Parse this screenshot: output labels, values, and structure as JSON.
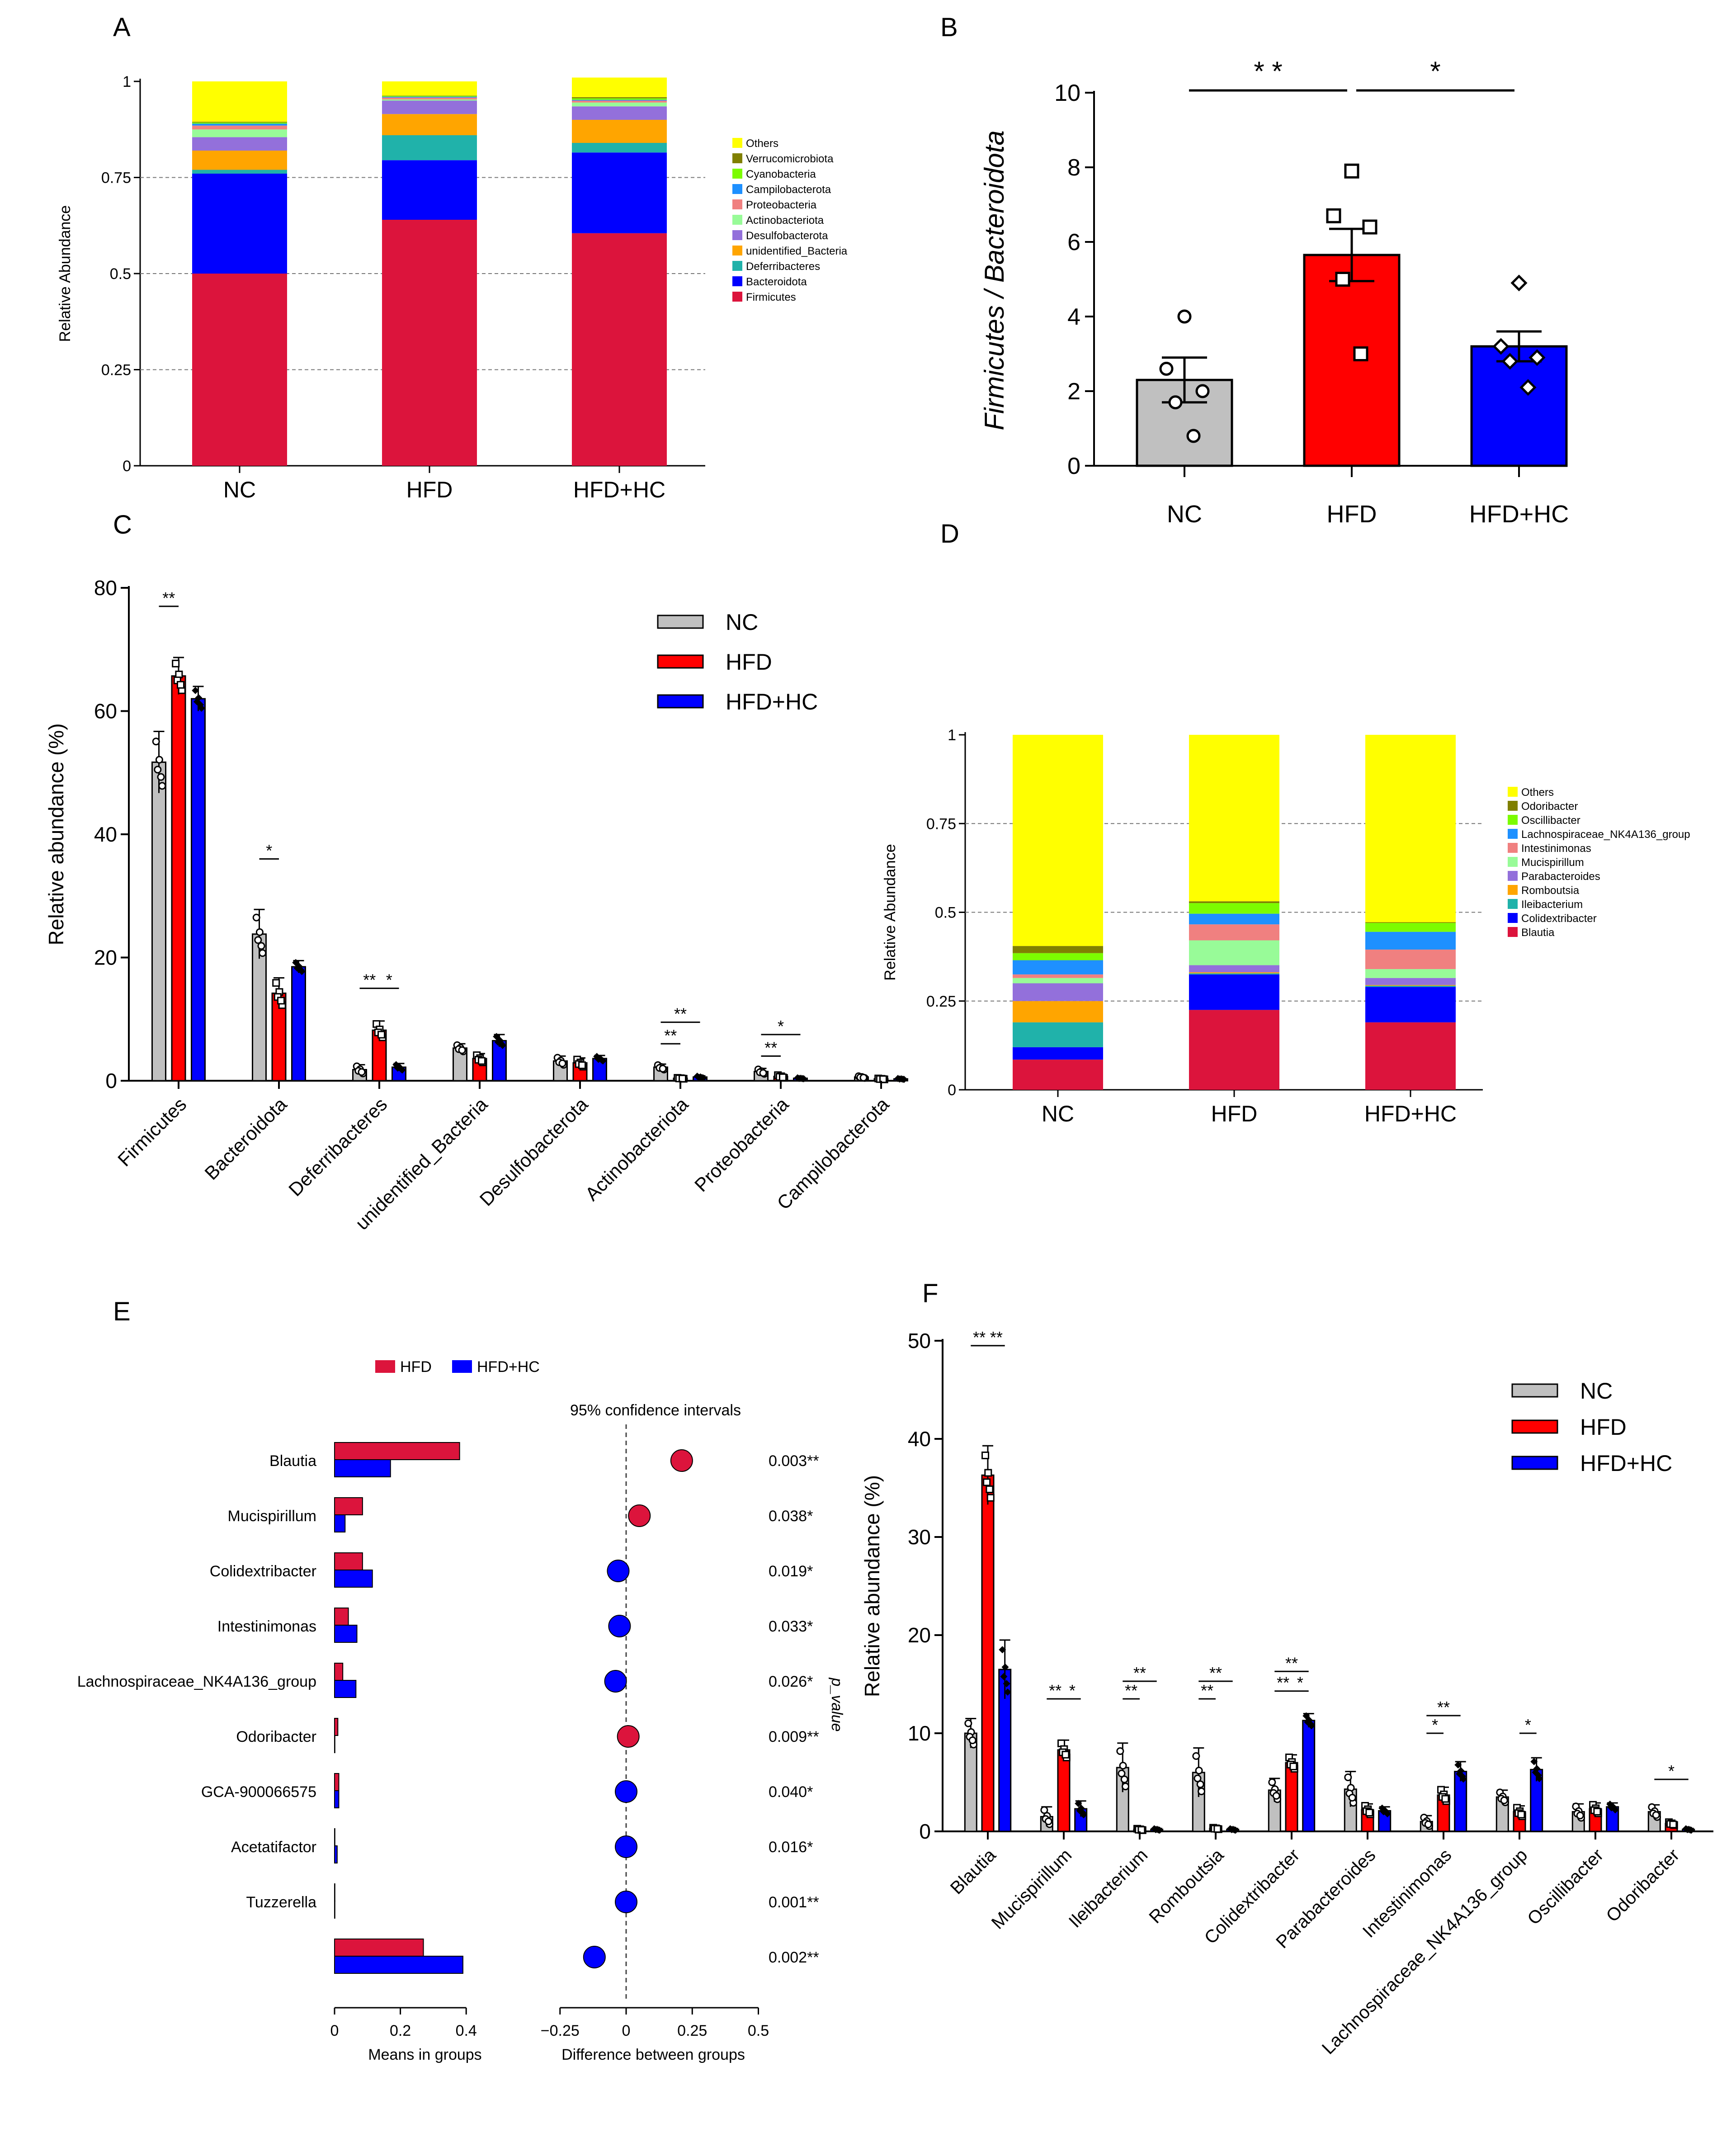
{
  "colors": {
    "NC": "#c0c0c0",
    "HFD": "#ff0000",
    "HFD+HC": "#0000ff",
    "ext_HFD": "#dc143c",
    "ext_HFDHC": "#0000ff"
  },
  "chart_data": [
    {
      "panel": "A",
      "type": "bar",
      "stacked": true,
      "ylabel": "Relative Abundance",
      "yticks": [
        "0",
        "0.25",
        "0.5",
        "0.75",
        "1"
      ],
      "categories": [
        "NC",
        "HFD",
        "HFD+HC"
      ],
      "legend": [
        "Others",
        "Verrucomicrobiota",
        "Cyanobacteria",
        "Campilobacterota",
        "Proteobacteria",
        "Actinobacteriota",
        "Desulfobacterota",
        "unidentified_Bacteria",
        "Deferribacteres",
        "Bacteroidota",
        "Firmicutes"
      ],
      "series": [
        {
          "name": "Firmicutes",
          "color": "#dc143c",
          "values": [
            0.5,
            0.64,
            0.605
          ]
        },
        {
          "name": "Bacteroidota",
          "color": "#0000ff",
          "values": [
            0.26,
            0.155,
            0.21
          ]
        },
        {
          "name": "Deferribacteres",
          "color": "#20b2aa",
          "values": [
            0.01,
            0.065,
            0.025
          ]
        },
        {
          "name": "unidentified_Bacteria",
          "color": "#ffa500",
          "values": [
            0.05,
            0.055,
            0.06
          ]
        },
        {
          "name": "Desulfobacterota",
          "color": "#9370db",
          "values": [
            0.035,
            0.035,
            0.035
          ]
        },
        {
          "name": "Actinobacteriota",
          "color": "#98fb98",
          "values": [
            0.02,
            0.003,
            0.01
          ]
        },
        {
          "name": "Proteobacteria",
          "color": "#f08080",
          "values": [
            0.01,
            0.005,
            0.005
          ]
        },
        {
          "name": "Campilobacterota",
          "color": "#1e90ff",
          "values": [
            0.005,
            0.002,
            0.002
          ]
        },
        {
          "name": "Cyanobacteria",
          "color": "#7cfc00",
          "values": [
            0.003,
            0.002,
            0.004
          ]
        },
        {
          "name": "Verrucomicrobiota",
          "color": "#808000",
          "values": [
            0.002,
            0.001,
            0.003
          ]
        },
        {
          "name": "Others",
          "color": "#ffff00",
          "values": [
            0.105,
            0.037,
            0.051
          ]
        }
      ]
    },
    {
      "panel": "B",
      "type": "bar",
      "ylabel": "Firmicutes / Bacteroidota",
      "ylim": [
        0,
        10
      ],
      "yticks": [
        "0",
        "2",
        "4",
        "6",
        "8",
        "10"
      ],
      "categories": [
        "NC",
        "HFD",
        "HFD+HC"
      ],
      "values": [
        2.3,
        5.65,
        3.2
      ],
      "sem": [
        0.6,
        0.7,
        0.4
      ],
      "points": [
        [
          4.0,
          2.6,
          2.0,
          1.7,
          0.8
        ],
        [
          7.9,
          6.7,
          6.4,
          5.0,
          3.0
        ],
        [
          4.9,
          3.2,
          2.9,
          2.8,
          2.1
        ]
      ],
      "comparisons": [
        {
          "from": "NC",
          "to": "HFD",
          "label": "* *"
        },
        {
          "from": "HFD",
          "to": "HFD+HC",
          "label": "*"
        }
      ]
    },
    {
      "panel": "C",
      "type": "bar",
      "ylabel": "Relative  abundance (%)",
      "ylim": [
        0,
        80
      ],
      "yticks": [
        "0",
        "20",
        "40",
        "60",
        "80"
      ],
      "categories": [
        "Firmicutes",
        "Bacteroidota",
        "Deferribacteres",
        "unidentified_Bacteria",
        "Desulfobacterota",
        "Actinobacteriota",
        "Proteobacteria",
        "Campilobacterota"
      ],
      "series": [
        {
          "name": "NC",
          "values": [
            51.7,
            23.8,
            1.8,
            5.3,
            3.2,
            2.2,
            1.5,
            0.6
          ]
        },
        {
          "name": "HFD",
          "values": [
            65.7,
            14.2,
            8.2,
            3.6,
            2.9,
            0.4,
            0.7,
            0.3
          ]
        },
        {
          "name": "HFD+HC",
          "values": [
            62.0,
            18.5,
            2.2,
            6.5,
            3.6,
            0.6,
            0.4,
            0.3
          ]
        }
      ],
      "sem": [
        [
          5.0,
          4.0,
          0.8,
          0.7,
          0.8,
          0.5,
          0.5,
          0.2
        ],
        [
          3.0,
          2.5,
          1.5,
          0.8,
          0.8,
          0.1,
          0.3,
          0.1
        ],
        [
          2.0,
          1.0,
          0.6,
          1.0,
          0.5,
          0.2,
          0.1,
          0.1
        ]
      ],
      "comparisons": [
        {
          "cat": 0,
          "from": 0,
          "to": 1,
          "label": "**",
          "y": 77
        },
        {
          "cat": 1,
          "from": 0,
          "to": 1,
          "label": "*",
          "y": 36
        },
        {
          "cat": 2,
          "from": 0,
          "to": 1,
          "label": "**",
          "y": 15
        },
        {
          "cat": 2,
          "from": 1,
          "to": 2,
          "label": "*",
          "y": 15
        },
        {
          "cat": 5,
          "from": 0,
          "to": 1,
          "label": "**",
          "y": 6
        },
        {
          "cat": 5,
          "from": 0,
          "to": 2,
          "label": "**",
          "y": 9.5
        },
        {
          "cat": 6,
          "from": 0,
          "to": 1,
          "label": "**",
          "y": 4
        },
        {
          "cat": 6,
          "from": 0,
          "to": 2,
          "label": "*",
          "y": 7.5
        }
      ]
    },
    {
      "panel": "D",
      "type": "bar",
      "stacked": true,
      "ylabel": "Relative Abundance",
      "yticks": [
        "0",
        "0.25",
        "0.5",
        "0.75",
        "1"
      ],
      "categories": [
        "NC",
        "HFD",
        "HFD+HC"
      ],
      "legend": [
        "Others",
        "Odoribacter",
        "Oscillibacter",
        "Lachnospiraceae_NK4A136_group",
        "Intestinimonas",
        "Mucispirillum",
        "Parabacteroides",
        "Romboutsia",
        "Ileibacterium",
        "Colidextribacter",
        "Blautia"
      ],
      "series": [
        {
          "name": "Blautia",
          "color": "#dc143c",
          "values": [
            0.085,
            0.225,
            0.19
          ]
        },
        {
          "name": "Colidextribacter",
          "color": "#0000ff",
          "values": [
            0.035,
            0.1,
            0.1
          ]
        },
        {
          "name": "Ileibacterium",
          "color": "#20b2aa",
          "values": [
            0.07,
            0.003,
            0.003
          ]
        },
        {
          "name": "Romboutsia",
          "color": "#ffa500",
          "values": [
            0.06,
            0.003,
            0.002
          ]
        },
        {
          "name": "Parabacteroides",
          "color": "#9370db",
          "values": [
            0.05,
            0.02,
            0.02
          ]
        },
        {
          "name": "Mucispirillum",
          "color": "#98fb98",
          "values": [
            0.015,
            0.07,
            0.025
          ]
        },
        {
          "name": "Intestinimonas",
          "color": "#f08080",
          "values": [
            0.01,
            0.045,
            0.055
          ]
        },
        {
          "name": "Lachnospiraceae_NK4A136_group",
          "color": "#1e90ff",
          "values": [
            0.04,
            0.03,
            0.05
          ]
        },
        {
          "name": "Oscillibacter",
          "color": "#7cfc00",
          "values": [
            0.02,
            0.03,
            0.025
          ]
        },
        {
          "name": "Odoribacter",
          "color": "#808000",
          "values": [
            0.02,
            0.005,
            0.002
          ]
        },
        {
          "name": "Others",
          "color": "#ffff00",
          "values": [
            0.595,
            0.469,
            0.528
          ]
        }
      ]
    },
    {
      "panel": "E",
      "type": "extended-error-bar",
      "legend": [
        "HFD",
        "HFD+HC"
      ],
      "ci_title": "95% confidence intervals",
      "pvalue_label": "p_value",
      "xlabel_left": "Means in groups",
      "xlabel_right": "Difference between groups",
      "xticks_left": [
        "0",
        "0.2",
        "0.4"
      ],
      "xticks_right": [
        "−0.25",
        "0",
        "0.25",
        "0.5"
      ],
      "rows": [
        {
          "label": "Blautia",
          "hfd": 0.38,
          "hfdhc": 0.17,
          "diff": 0.21,
          "ci": [
            0.18,
            0.24
          ],
          "p": "0.003**"
        },
        {
          "label": "Mucispirillum",
          "hfd": 0.085,
          "hfdhc": 0.032,
          "diff": 0.05,
          "ci": [
            0.03,
            0.07
          ],
          "p": "0.038*"
        },
        {
          "label": "Colidextribacter",
          "hfd": 0.085,
          "hfdhc": 0.115,
          "diff": -0.03,
          "ci": [
            -0.04,
            -0.02
          ],
          "p": "0.019*"
        },
        {
          "label": "Intestinimonas",
          "hfd": 0.042,
          "hfdhc": 0.068,
          "diff": -0.025,
          "ci": [
            -0.035,
            -0.015
          ],
          "p": "0.033*"
        },
        {
          "label": "Lachnospiraceae_NK4A136_group",
          "hfd": 0.025,
          "hfdhc": 0.065,
          "diff": -0.04,
          "ci": [
            -0.05,
            -0.03
          ],
          "p": "0.026*"
        },
        {
          "label": "Odoribacter",
          "hfd": 0.01,
          "hfdhc": 0.001,
          "diff": 0.008,
          "ci": [
            0.004,
            0.012
          ],
          "p": "0.009**"
        },
        {
          "label": "GCA-900066575",
          "hfd": 0.013,
          "hfdhc": 0.013,
          "diff": 0.0,
          "ci": [
            -0.003,
            0.003
          ],
          "p": "0.040*"
        },
        {
          "label": "Acetatifactor",
          "hfd": 0.001,
          "hfdhc": 0.008,
          "diff": 0.0,
          "ci": [
            -0.003,
            0.003
          ],
          "p": "0.016*"
        },
        {
          "label": "Tuzzerella",
          "hfd": 0.001,
          "hfdhc": 0.001,
          "diff": 0.0,
          "ci": [
            -0.003,
            0.003
          ],
          "p": "0.001**"
        },
        {
          "label": "",
          "hfd": 0.27,
          "hfdhc": 0.39,
          "diff": -0.12,
          "ci": [
            -0.15,
            -0.09
          ],
          "p": "0.002**"
        }
      ]
    },
    {
      "panel": "F",
      "type": "bar",
      "ylabel": "Relative abundance (%)",
      "ylim": [
        0,
        50
      ],
      "yticks": [
        "0",
        "10",
        "20",
        "30",
        "40",
        "50"
      ],
      "categories": [
        "Blautia",
        "Mucispirillum",
        "Ileibacterium",
        "Romboutsia",
        "Colidextribacter",
        "Parabacteroides",
        "Intestinimonas",
        "Lachnospiraceae_NK4A136_group",
        "Oscillibacter",
        "Odoribacter"
      ],
      "series": [
        {
          "name": "NC",
          "values": [
            10.0,
            1.5,
            6.5,
            6.0,
            4.2,
            4.3,
            1.0,
            3.5,
            2.0,
            2.0
          ]
        },
        {
          "name": "HFD",
          "values": [
            36.3,
            8.3,
            0.2,
            0.3,
            7.0,
            2.2,
            3.7,
            2.0,
            2.3,
            0.8
          ]
        },
        {
          "name": "HFD+HC",
          "values": [
            16.5,
            2.3,
            0.2,
            0.2,
            11.3,
            2.1,
            6.1,
            6.3,
            2.5,
            0.2
          ]
        }
      ],
      "sem": [
        [
          1.5,
          1.0,
          2.5,
          2.5,
          1.2,
          1.8,
          0.6,
          0.7,
          0.8,
          0.7
        ],
        [
          3.0,
          1.0,
          0.1,
          0.1,
          0.8,
          0.6,
          0.8,
          0.6,
          0.6,
          0.2
        ],
        [
          3.0,
          0.8,
          0.1,
          0.1,
          0.7,
          0.4,
          1.0,
          1.2,
          0.4,
          0.1
        ]
      ],
      "comparisons": [
        {
          "cat": 0,
          "from": 0,
          "to": 1,
          "label": "**",
          "y": 49.5
        },
        {
          "cat": 0,
          "from": 1,
          "to": 2,
          "label": "**",
          "y": 49.5
        },
        {
          "cat": 1,
          "from": 0,
          "to": 1,
          "label": "**",
          "y": 13.5
        },
        {
          "cat": 1,
          "from": 1,
          "to": 2,
          "label": "*",
          "y": 13.5
        },
        {
          "cat": 2,
          "from": 0,
          "to": 1,
          "label": "**",
          "y": 13.5
        },
        {
          "cat": 2,
          "from": 0,
          "to": 2,
          "label": "**",
          "y": 15.3
        },
        {
          "cat": 3,
          "from": 0,
          "to": 1,
          "label": "**",
          "y": 13.5
        },
        {
          "cat": 3,
          "from": 0,
          "to": 2,
          "label": "**",
          "y": 15.3
        },
        {
          "cat": 4,
          "from": 0,
          "to": 1,
          "label": "**",
          "y": 14.3
        },
        {
          "cat": 4,
          "from": 1,
          "to": 2,
          "label": "*",
          "y": 14.3
        },
        {
          "cat": 4,
          "from": 0,
          "to": 2,
          "label": "**",
          "y": 16.3
        },
        {
          "cat": 6,
          "from": 0,
          "to": 1,
          "label": "*",
          "y": 10.0
        },
        {
          "cat": 6,
          "from": 0,
          "to": 2,
          "label": "**",
          "y": 11.8
        },
        {
          "cat": 7,
          "from": 1,
          "to": 2,
          "label": "*",
          "y": 10.0
        },
        {
          "cat": 9,
          "from": 0,
          "to": 2,
          "label": "*",
          "y": 5.3
        }
      ]
    }
  ],
  "panels": {
    "A": "A",
    "B": "B",
    "C": "C",
    "D": "D",
    "E": "E",
    "F": "F"
  }
}
